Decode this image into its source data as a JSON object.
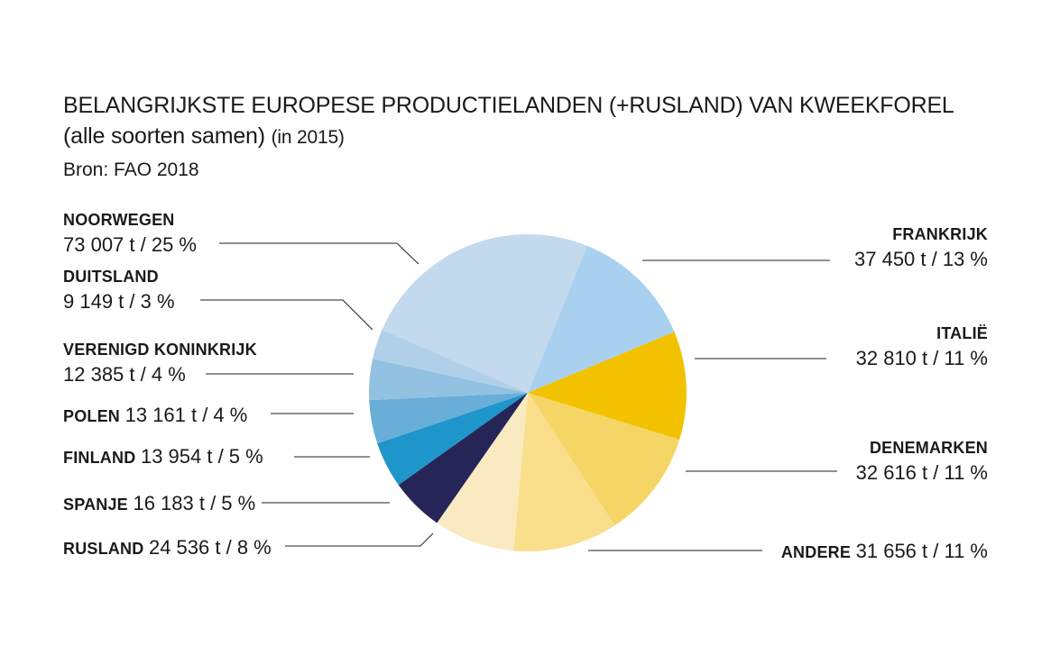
{
  "title": {
    "line1": "BELANGRIJKSTE EUROPESE PRODUCTIELANDEN (+RUSLAND) VAN KWEEKFOREL",
    "line2_main": "(alle soorten samen)",
    "line2_small": "(in 2015)"
  },
  "source": "Bron: FAO 2018",
  "chart_data": {
    "type": "pie",
    "slices": [
      {
        "name": "FRANKRIJK",
        "value": 37450,
        "value_label": "37 450 t / 13 %",
        "color": "#a9d1ef"
      },
      {
        "name": "ITALIË",
        "value": 32810,
        "value_label": "32 810 t / 11 %",
        "color": "#f2c200"
      },
      {
        "name": "DENEMARKEN",
        "value": 32616,
        "value_label": "32 616 t / 11 %",
        "color": "#f6d567"
      },
      {
        "name": "ANDERE",
        "value": 31656,
        "value_label": "31 656 t / 11 %",
        "color": "#f9df8c"
      },
      {
        "name": "RUSLAND",
        "value": 24536,
        "value_label": "24 536 t / 8 %",
        "color": "#faeac2"
      },
      {
        "name": "SPANJE",
        "value": 16183,
        "value_label": "16 183 t / 5 %",
        "color": "#252558"
      },
      {
        "name": "FINLAND",
        "value": 13954,
        "value_label": "13 954 t / 5 %",
        "color": "#1f96cb"
      },
      {
        "name": "POLEN",
        "value": 13161,
        "value_label": "13 161 t / 4 %",
        "color": "#68aed8"
      },
      {
        "name": "VERENIGD KONINKRIJK",
        "value": 12385,
        "value_label": "12 385 t / 4 %",
        "color": "#93c1e1"
      },
      {
        "name": "DUITSLAND",
        "value": 9149,
        "value_label": "9 149 t / 3 %",
        "color": "#b0d0ea"
      },
      {
        "name": "NOORWEGEN",
        "value": 73007,
        "value_label": "73 007 t / 25 %",
        "color": "#c2d9ee"
      }
    ],
    "title": "BELANGRIJKSTE EUROPESE PRODUCTIELANDEN (+RUSLAND) VAN KWEEKFOREL",
    "unit": "t"
  }
}
